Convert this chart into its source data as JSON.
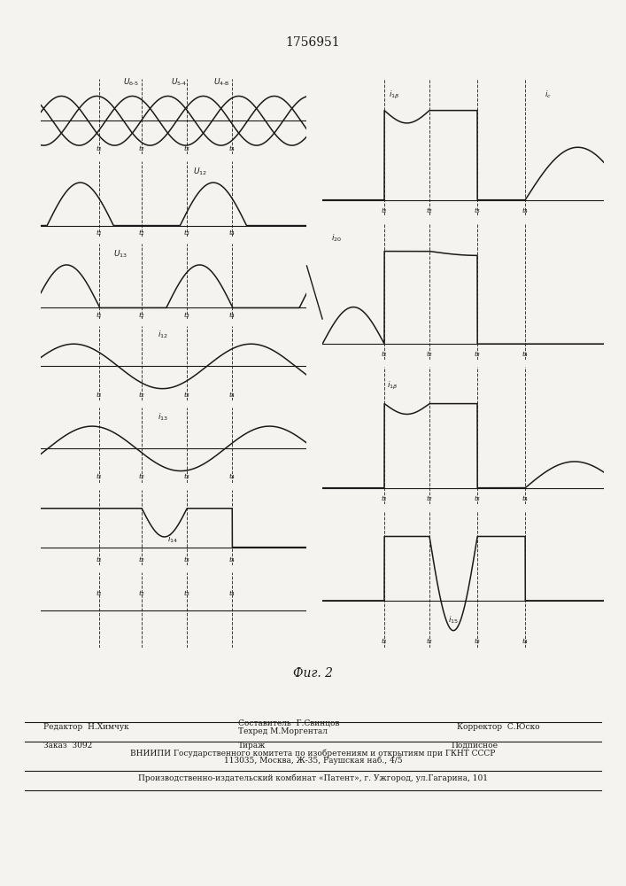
{
  "title": "1756951",
  "fig_label": "Фиг. 2",
  "bg": "#f5f3ef",
  "lc": "#1a1a1a",
  "footer_editor": "Редактор  Н.Химчук",
  "footer_comp": "Составитель  Г.Свинцов",
  "footer_tech": "Техред М.Моргентал",
  "footer_corr": "Корректор  С.Юско",
  "footer_order": "Заказ  3092",
  "footer_tirazh": "Тираж",
  "footer_podp": "Подписное",
  "footer_vniip": "ВНИИПИ Государственного комитета по изобретениям и открытиям при ГКНТ СССР",
  "footer_addr": "113035, Москва, Ж-35, Раушская наб., 4/5",
  "footer_patent": "Производственно-издательский комбинат «Патент», г. Ужгород, ул.Гагарина, 101"
}
